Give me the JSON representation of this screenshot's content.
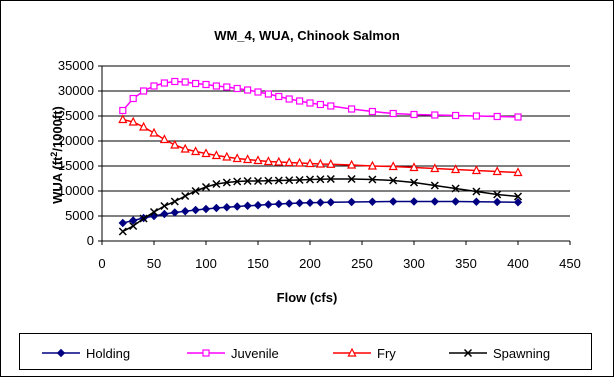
{
  "chart_data": {
    "type": "line",
    "title": "WM_4, WUA, Chinook Salmon",
    "xlabel": "Flow (cfs)",
    "ylabel_main": "WUA (ft",
    "ylabel_sup": "2",
    "ylabel_tail": "/1000ft)",
    "xlim": [
      0,
      450
    ],
    "ylim": [
      0,
      35000
    ],
    "x_ticks": [
      0,
      50,
      100,
      150,
      200,
      250,
      300,
      350,
      400,
      450
    ],
    "y_ticks": [
      0,
      5000,
      10000,
      15000,
      20000,
      25000,
      30000,
      35000
    ],
    "legend_position": "bottom",
    "series": [
      {
        "name": "Holding",
        "color": "#000080",
        "marker": "diamond",
        "x": [
          20,
          30,
          40,
          50,
          60,
          70,
          80,
          90,
          100,
          110,
          120,
          130,
          140,
          150,
          160,
          170,
          180,
          190,
          200,
          210,
          220,
          240,
          260,
          280,
          300,
          320,
          340,
          360,
          380,
          400
        ],
        "y": [
          3600,
          4100,
          4600,
          5000,
          5400,
          5700,
          5950,
          6200,
          6400,
          6600,
          6750,
          6900,
          7050,
          7150,
          7300,
          7400,
          7500,
          7600,
          7650,
          7700,
          7750,
          7800,
          7850,
          7900,
          7900,
          7900,
          7900,
          7850,
          7800,
          7750
        ]
      },
      {
        "name": "Juvenile",
        "color": "#ff00ff",
        "marker": "square",
        "x": [
          20,
          30,
          40,
          50,
          60,
          70,
          80,
          90,
          100,
          110,
          120,
          130,
          140,
          150,
          160,
          170,
          180,
          190,
          200,
          210,
          220,
          240,
          260,
          280,
          300,
          320,
          340,
          360,
          380,
          400
        ],
        "y": [
          26100,
          28500,
          30000,
          31000,
          31600,
          31900,
          31800,
          31500,
          31300,
          31000,
          30800,
          30500,
          30200,
          29800,
          29400,
          28900,
          28400,
          28000,
          27600,
          27300,
          27000,
          26400,
          25900,
          25500,
          25300,
          25200,
          25100,
          25000,
          24900,
          24800
        ]
      },
      {
        "name": "Fry",
        "color": "#ff0000",
        "marker": "triangle",
        "x": [
          20,
          30,
          40,
          50,
          60,
          70,
          80,
          90,
          100,
          110,
          120,
          130,
          140,
          150,
          160,
          170,
          180,
          190,
          200,
          210,
          220,
          240,
          260,
          280,
          300,
          320,
          340,
          360,
          380,
          400
        ],
        "y": [
          24300,
          23800,
          22800,
          21600,
          20300,
          19200,
          18400,
          17900,
          17500,
          17100,
          16800,
          16500,
          16300,
          16100,
          15900,
          15800,
          15700,
          15600,
          15500,
          15400,
          15350,
          15200,
          15000,
          14900,
          14700,
          14500,
          14300,
          14100,
          13900,
          13700
        ]
      },
      {
        "name": "Spawning",
        "color": "#000000",
        "marker": "x",
        "x": [
          20,
          30,
          40,
          50,
          60,
          70,
          80,
          90,
          100,
          110,
          120,
          130,
          140,
          150,
          160,
          170,
          180,
          190,
          200,
          210,
          220,
          240,
          260,
          280,
          300,
          320,
          340,
          360,
          380,
          400
        ],
        "y": [
          1900,
          3000,
          4500,
          5800,
          7000,
          7900,
          9000,
          10000,
          10800,
          11400,
          11700,
          11900,
          12000,
          12000,
          12050,
          12100,
          12150,
          12200,
          12300,
          12350,
          12400,
          12400,
          12300,
          12100,
          11700,
          11100,
          10500,
          9900,
          9300,
          8900
        ]
      }
    ]
  }
}
